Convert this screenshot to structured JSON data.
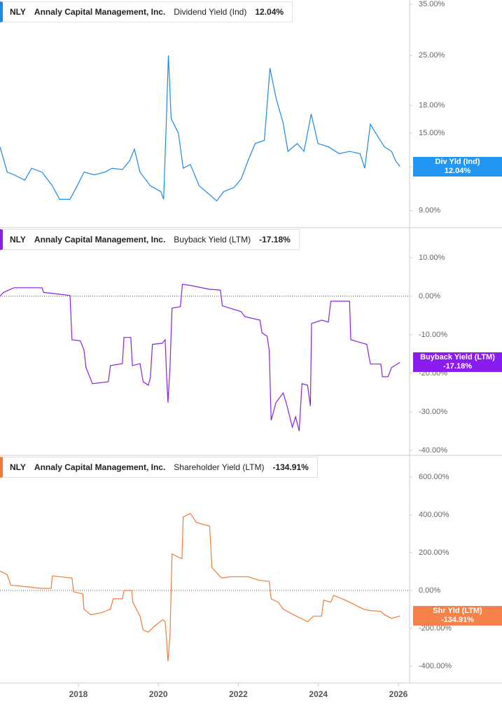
{
  "chart_data": [
    {
      "type": "line",
      "ticker": "NLY",
      "company": "Annaly Capital Management, Inc.",
      "current_value": "12.04%",
      "badge_label": "Div Yld (Ind)",
      "log_scale": true,
      "zero_line": false,
      "xlim": [
        2016.04,
        2026.28
      ],
      "x": [
        2016.04,
        2016.22,
        2016.39,
        2016.66,
        2016.83,
        2017.09,
        2017.35,
        2017.53,
        2017.79,
        2017.97,
        2018.14,
        2018.4,
        2018.66,
        2018.84,
        2019.1,
        2019.28,
        2019.4,
        2019.54,
        2019.8,
        2020.06,
        2020.13,
        2020.2,
        2020.25,
        2020.32,
        2020.5,
        2020.62,
        2020.8,
        2021.02,
        2021.28,
        2021.46,
        2021.63,
        2021.9,
        2022.07,
        2022.24,
        2022.42,
        2022.65,
        2022.79,
        2022.94,
        2023.12,
        2023.24,
        2023.47,
        2023.64,
        2023.82,
        2023.99,
        2024.25,
        2024.52,
        2024.78,
        2025.04,
        2025.16,
        2025.3,
        2025.48,
        2025.65,
        2025.83,
        2025.93,
        2026.04
      ],
      "series": [
        {
          "name": "Dividend Yield (Ind)",
          "color": "#1a8ae6",
          "badge_color": "#2196f3",
          "values": [
            13.7,
            11.6,
            11.4,
            11.0,
            11.9,
            11.6,
            10.6,
            9.7,
            9.7,
            10.6,
            11.6,
            11.4,
            11.6,
            11.9,
            11.8,
            12.5,
            13.5,
            11.6,
            10.6,
            10.2,
            9.7,
            16.5,
            25,
            16.5,
            15.0,
            11.9,
            12.2,
            10.6,
            10.0,
            9.6,
            10.2,
            10.5,
            11.1,
            12.5,
            14.0,
            14.3,
            23,
            18.9,
            16.0,
            13.3,
            14.0,
            13.3,
            17.0,
            14.0,
            13.7,
            13.1,
            13.3,
            13.1,
            11.9,
            15.9,
            14.7,
            13.7,
            13.3,
            12.5,
            12.04
          ]
        }
      ],
      "ylim": [
        8.05,
        36
      ],
      "yticks": [
        {
          "value": 9,
          "label": "9.00%"
        },
        {
          "value": 12,
          "label": "12.00%"
        },
        {
          "value": 15,
          "label": "15.00%"
        },
        {
          "value": 18,
          "label": "18.00%"
        },
        {
          "value": 25,
          "label": "25.00%"
        },
        {
          "value": 35,
          "label": "35.00%"
        }
      ]
    },
    {
      "type": "line",
      "ticker": "NLY",
      "company": "Annaly Capital Management, Inc.",
      "current_value": "-17.18%",
      "badge_label": "Buyback Yield (LTM)",
      "log_scale": false,
      "zero_line": true,
      "xlim": [
        2016.04,
        2026.28
      ],
      "x": [
        2016.04,
        2016.13,
        2016.39,
        2017.09,
        2017.13,
        2017.79,
        2017.84,
        2018.05,
        2018.14,
        2018.19,
        2018.35,
        2018.75,
        2018.8,
        2019.1,
        2019.14,
        2019.31,
        2019.35,
        2019.54,
        2019.62,
        2019.75,
        2019.8,
        2019.85,
        2020.1,
        2020.17,
        2020.2,
        2020.24,
        2020.29,
        2020.34,
        2020.55,
        2020.6,
        2020.85,
        2021.28,
        2021.55,
        2021.6,
        2022.07,
        2022.16,
        2022.54,
        2022.59,
        2022.72,
        2022.77,
        2022.82,
        2022.94,
        2023.12,
        2023.21,
        2023.35,
        2023.43,
        2023.52,
        2023.59,
        2023.73,
        2023.8,
        2023.83,
        2024.08,
        2024.25,
        2024.31,
        2024.78,
        2024.81,
        2025.21,
        2025.3,
        2025.56,
        2025.6,
        2025.74,
        2025.83,
        2026.04
      ],
      "series": [
        {
          "name": "Buyback Yield (LTM)",
          "color": "#8a1fe6",
          "badge_color": "#8b1cf0",
          "values": [
            0,
            1,
            2.2,
            2.2,
            1,
            0.2,
            -11.3,
            -11.6,
            -14,
            -18.5,
            -22.7,
            -22.2,
            -18,
            -17.5,
            -10.7,
            -10.7,
            -18,
            -17.5,
            -22.2,
            -23.1,
            -21.1,
            -12.5,
            -12.2,
            -11.3,
            -19.5,
            -27.6,
            -18.5,
            -3.1,
            -2.7,
            3.1,
            2.7,
            1.8,
            1.6,
            -2.5,
            -4,
            -5.3,
            -6.2,
            -9.5,
            -10.4,
            -14,
            -32.2,
            -27.6,
            -25.1,
            -28.2,
            -34,
            -31.3,
            -35,
            -22.7,
            -23.1,
            -28.5,
            -7.1,
            -6.2,
            -6.7,
            -1.3,
            -1.3,
            -11.3,
            -12.5,
            -17.6,
            -17.6,
            -20.9,
            -20.9,
            -18.5,
            -17.18
          ]
        }
      ],
      "ylim": [
        -41.3,
        17.8
      ],
      "yticks": [
        {
          "value": -40,
          "label": "-40.00%"
        },
        {
          "value": -30,
          "label": "-30.00%"
        },
        {
          "value": -20,
          "label": "-20.00%"
        },
        {
          "value": -10,
          "label": "-10.00%"
        },
        {
          "value": 0,
          "label": "0.00%"
        },
        {
          "value": 10,
          "label": "10.00%"
        }
      ]
    },
    {
      "type": "line",
      "ticker": "NLY",
      "company": "Annaly Capital Management, Inc.",
      "current_value": "-134.91%",
      "badge_label": "Shr Yld (LTM)",
      "log_scale": false,
      "zero_line": true,
      "xlim": [
        2016.04,
        2026.28
      ],
      "xticks": [
        2018,
        2020,
        2022,
        2024,
        2026
      ],
      "x": [
        2016.04,
        2016.22,
        2016.31,
        2017.09,
        2017.32,
        2017.35,
        2017.84,
        2017.88,
        2018.11,
        2018.14,
        2018.31,
        2018.58,
        2018.8,
        2018.87,
        2019.1,
        2019.14,
        2019.33,
        2019.36,
        2019.54,
        2019.62,
        2019.75,
        2019.89,
        2020.11,
        2020.17,
        2020.2,
        2020.24,
        2020.29,
        2020.34,
        2020.5,
        2020.59,
        2020.62,
        2020.8,
        2020.95,
        2021.28,
        2021.34,
        2021.58,
        2021.81,
        2022.24,
        2022.51,
        2022.77,
        2022.82,
        2023.0,
        2023.12,
        2023.38,
        2023.73,
        2023.87,
        2024.08,
        2024.13,
        2024.31,
        2024.38,
        2024.6,
        2024.78,
        2025.13,
        2025.3,
        2025.56,
        2025.65,
        2025.83,
        2026.04
      ],
      "series": [
        {
          "name": "Shareholder Yield (LTM)",
          "color": "#f07a3a",
          "badge_color": "#f4824a",
          "values": [
            103,
            84,
            29,
            11,
            11,
            77,
            66,
            -7,
            -18,
            -99,
            -128,
            -117,
            -99,
            -44,
            -44,
            0,
            0,
            -62,
            -136,
            -209,
            -220,
            -191,
            -154,
            -165,
            -246,
            -374,
            -246,
            194,
            176,
            169,
            389,
            407,
            360,
            341,
            121,
            66,
            73,
            73,
            55,
            48,
            -44,
            -62,
            -99,
            -128,
            -165,
            -136,
            -136,
            -51,
            -62,
            -26,
            -44,
            -62,
            -99,
            -106,
            -110,
            -128,
            -147,
            -134.91
          ]
        }
      ],
      "ylim": [
        -489,
        715
      ],
      "yticks": [
        {
          "value": -400,
          "label": "-400.00%"
        },
        {
          "value": -200,
          "label": "-200.00%"
        },
        {
          "value": 0,
          "label": "0.00%"
        },
        {
          "value": 200,
          "label": "200.00%"
        },
        {
          "value": 400,
          "label": "400.00%"
        },
        {
          "value": 600,
          "label": "600.00%"
        }
      ]
    }
  ]
}
